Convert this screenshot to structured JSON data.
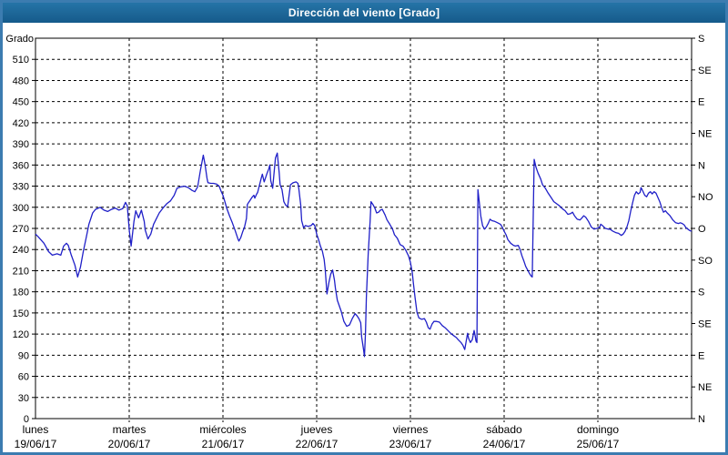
{
  "window": {
    "title": "Dirección del viento [Grado]"
  },
  "chart_data": {
    "type": "line",
    "title": "Dirección del viento [Grado]",
    "ylabel_left": "Grado",
    "y_left": {
      "min": 0,
      "max": 540,
      "tick_step": 30,
      "tick_labels_shown": [
        "0",
        "30",
        "60",
        "90",
        "120",
        "150",
        "180",
        "210",
        "240",
        "270",
        "300",
        "330",
        "360",
        "390",
        "420",
        "450",
        "480",
        "510"
      ]
    },
    "y_right": {
      "tick_step_degrees": 45,
      "labels_top_to_bottom": [
        "S",
        "SE",
        "E",
        "NE",
        "N",
        "NO",
        "O",
        "SO",
        "S",
        "SE",
        "E",
        "NE",
        "N"
      ]
    },
    "x_axis": {
      "unit": "days",
      "range_days": 7,
      "categories": [
        {
          "day": "lunes",
          "date": "19/06/17"
        },
        {
          "day": "martes",
          "date": "20/06/17"
        },
        {
          "day": "miércoles",
          "date": "21/06/17"
        },
        {
          "day": "jueves",
          "date": "22/06/17"
        },
        {
          "day": "viernes",
          "date": "23/06/17"
        },
        {
          "day": "sábado",
          "date": "24/06/17"
        },
        {
          "day": "domingo",
          "date": "25/06/17"
        }
      ]
    },
    "grid": "dashed",
    "legend": "none",
    "colors": {
      "line": "#2020c8",
      "titlebar": "#1d6697",
      "window_border": "#3c7cb0",
      "grid": "#000000"
    },
    "series": [
      {
        "name": "Dirección del viento",
        "unit": "Grado",
        "points": [
          [
            0.0,
            262
          ],
          [
            0.03,
            258
          ],
          [
            0.09,
            249
          ],
          [
            0.14,
            237
          ],
          [
            0.18,
            232
          ],
          [
            0.23,
            234
          ],
          [
            0.27,
            232
          ],
          [
            0.3,
            245
          ],
          [
            0.33,
            249
          ],
          [
            0.35,
            246
          ],
          [
            0.38,
            233
          ],
          [
            0.42,
            218
          ],
          [
            0.45,
            201
          ],
          [
            0.48,
            215
          ],
          [
            0.51,
            237
          ],
          [
            0.54,
            256
          ],
          [
            0.57,
            276
          ],
          [
            0.61,
            292
          ],
          [
            0.64,
            297
          ],
          [
            0.69,
            300
          ],
          [
            0.73,
            296
          ],
          [
            0.77,
            294
          ],
          [
            0.81,
            297
          ],
          [
            0.85,
            299
          ],
          [
            0.89,
            296
          ],
          [
            0.93,
            298
          ],
          [
            0.96,
            307
          ],
          [
            0.98,
            302
          ],
          [
            1.0,
            268
          ],
          [
            1.02,
            245
          ],
          [
            1.05,
            280
          ],
          [
            1.07,
            295
          ],
          [
            1.1,
            285
          ],
          [
            1.13,
            296
          ],
          [
            1.16,
            280
          ],
          [
            1.17,
            268
          ],
          [
            1.2,
            255
          ],
          [
            1.23,
            262
          ],
          [
            1.26,
            276
          ],
          [
            1.29,
            284
          ],
          [
            1.32,
            292
          ],
          [
            1.36,
            299
          ],
          [
            1.4,
            305
          ],
          [
            1.44,
            309
          ],
          [
            1.48,
            317
          ],
          [
            1.51,
            327
          ],
          [
            1.55,
            329
          ],
          [
            1.59,
            330
          ],
          [
            1.63,
            328
          ],
          [
            1.67,
            324
          ],
          [
            1.7,
            322
          ],
          [
            1.73,
            329
          ],
          [
            1.76,
            353
          ],
          [
            1.79,
            374
          ],
          [
            1.81,
            360
          ],
          [
            1.83,
            341
          ],
          [
            1.84,
            335
          ],
          [
            1.87,
            334
          ],
          [
            1.9,
            334
          ],
          [
            1.93,
            333
          ],
          [
            1.96,
            330
          ],
          [
            1.98,
            323
          ],
          [
            2.0,
            317
          ],
          [
            2.02,
            308
          ],
          [
            2.04,
            299
          ],
          [
            2.07,
            288
          ],
          [
            2.1,
            278
          ],
          [
            2.13,
            267
          ],
          [
            2.16,
            255
          ],
          [
            2.17,
            252
          ],
          [
            2.19,
            257
          ],
          [
            2.21,
            265
          ],
          [
            2.23,
            272
          ],
          [
            2.25,
            284
          ],
          [
            2.26,
            304
          ],
          [
            2.28,
            308
          ],
          [
            2.29,
            310
          ],
          [
            2.31,
            314
          ],
          [
            2.33,
            317
          ],
          [
            2.34,
            313
          ],
          [
            2.36,
            319
          ],
          [
            2.37,
            321
          ],
          [
            2.41,
            342
          ],
          [
            2.42,
            347
          ],
          [
            2.44,
            336
          ],
          [
            2.47,
            348
          ],
          [
            2.49,
            355
          ],
          [
            2.5,
            360
          ],
          [
            2.51,
            338
          ],
          [
            2.53,
            327
          ],
          [
            2.56,
            370
          ],
          [
            2.58,
            377
          ],
          [
            2.6,
            349
          ],
          [
            2.61,
            332
          ],
          [
            2.63,
            325
          ],
          [
            2.65,
            308
          ],
          [
            2.67,
            303
          ],
          [
            2.69,
            301
          ],
          [
            2.72,
            332
          ],
          [
            2.75,
            335
          ],
          [
            2.78,
            336
          ],
          [
            2.8,
            334
          ],
          [
            2.81,
            326
          ],
          [
            2.83,
            303
          ],
          [
            2.84,
            281
          ],
          [
            2.86,
            271
          ],
          [
            2.88,
            274
          ],
          [
            2.91,
            273
          ],
          [
            2.94,
            274
          ],
          [
            2.96,
            277
          ],
          [
            2.98,
            274
          ],
          [
            3.0,
            262
          ],
          [
            3.02,
            254
          ],
          [
            3.04,
            245
          ],
          [
            3.06,
            238
          ],
          [
            3.08,
            226
          ],
          [
            3.09,
            213
          ],
          [
            3.11,
            177
          ],
          [
            3.13,
            193
          ],
          [
            3.15,
            205
          ],
          [
            3.17,
            211
          ],
          [
            3.19,
            196
          ],
          [
            3.2,
            185
          ],
          [
            3.22,
            168
          ],
          [
            3.26,
            153
          ],
          [
            3.29,
            138
          ],
          [
            3.32,
            131
          ],
          [
            3.35,
            133
          ],
          [
            3.38,
            142
          ],
          [
            3.41,
            149
          ],
          [
            3.43,
            146
          ],
          [
            3.45,
            142
          ],
          [
            3.47,
            136
          ],
          [
            3.48,
            116
          ],
          [
            3.5,
            98
          ],
          [
            3.51,
            88
          ],
          [
            3.52,
            121
          ],
          [
            3.53,
            172
          ],
          [
            3.55,
            233
          ],
          [
            3.56,
            258
          ],
          [
            3.57,
            280
          ],
          [
            3.58,
            308
          ],
          [
            3.6,
            304
          ],
          [
            3.62,
            299
          ],
          [
            3.64,
            292
          ],
          [
            3.66,
            293
          ],
          [
            3.68,
            296
          ],
          [
            3.7,
            297
          ],
          [
            3.73,
            289
          ],
          [
            3.75,
            282
          ],
          [
            3.78,
            276
          ],
          [
            3.81,
            269
          ],
          [
            3.83,
            261
          ],
          [
            3.86,
            256
          ],
          [
            3.89,
            247
          ],
          [
            3.92,
            245
          ],
          [
            3.95,
            239
          ],
          [
            3.98,
            231
          ],
          [
            4.0,
            222
          ],
          [
            4.02,
            207
          ],
          [
            4.03,
            194
          ],
          [
            4.05,
            172
          ],
          [
            4.07,
            151
          ],
          [
            4.09,
            143
          ],
          [
            4.12,
            141
          ],
          [
            4.15,
            142
          ],
          [
            4.17,
            137
          ],
          [
            4.19,
            129
          ],
          [
            4.21,
            127
          ],
          [
            4.23,
            134
          ],
          [
            4.25,
            138
          ],
          [
            4.28,
            138
          ],
          [
            4.31,
            137
          ],
          [
            4.34,
            132
          ],
          [
            4.37,
            129
          ],
          [
            4.4,
            125
          ],
          [
            4.43,
            121
          ],
          [
            4.46,
            118
          ],
          [
            4.49,
            115
          ],
          [
            4.51,
            112
          ],
          [
            4.54,
            108
          ],
          [
            4.56,
            104
          ],
          [
            4.58,
            98
          ],
          [
            4.59,
            106
          ],
          [
            4.61,
            121
          ],
          [
            4.62,
            114
          ],
          [
            4.64,
            108
          ],
          [
            4.66,
            112
          ],
          [
            4.68,
            125
          ],
          [
            4.69,
            118
          ],
          [
            4.7,
            110
          ],
          [
            4.71,
            108
          ],
          [
            4.72,
            325
          ],
          [
            4.74,
            301
          ],
          [
            4.75,
            288
          ],
          [
            4.77,
            274
          ],
          [
            4.79,
            269
          ],
          [
            4.81,
            272
          ],
          [
            4.83,
            277
          ],
          [
            4.85,
            283
          ],
          [
            4.87,
            281
          ],
          [
            4.9,
            280
          ],
          [
            4.93,
            278
          ],
          [
            4.96,
            276
          ],
          [
            4.98,
            272
          ],
          [
            5.0,
            266
          ],
          [
            5.02,
            261
          ],
          [
            5.04,
            254
          ],
          [
            5.07,
            249
          ],
          [
            5.1,
            246
          ],
          [
            5.12,
            245
          ],
          [
            5.15,
            246
          ],
          [
            5.17,
            240
          ],
          [
            5.19,
            231
          ],
          [
            5.21,
            224
          ],
          [
            5.23,
            216
          ],
          [
            5.25,
            211
          ],
          [
            5.27,
            206
          ],
          [
            5.29,
            202
          ],
          [
            5.3,
            201
          ],
          [
            5.32,
            368
          ],
          [
            5.34,
            357
          ],
          [
            5.36,
            349
          ],
          [
            5.39,
            340
          ],
          [
            5.41,
            332
          ],
          [
            5.44,
            327
          ],
          [
            5.47,
            320
          ],
          [
            5.5,
            314
          ],
          [
            5.53,
            308
          ],
          [
            5.56,
            305
          ],
          [
            5.59,
            302
          ],
          [
            5.62,
            298
          ],
          [
            5.65,
            295
          ],
          [
            5.68,
            290
          ],
          [
            5.71,
            291
          ],
          [
            5.73,
            293
          ],
          [
            5.75,
            288
          ],
          [
            5.78,
            283
          ],
          [
            5.81,
            282
          ],
          [
            5.83,
            285
          ],
          [
            5.85,
            288
          ],
          [
            5.87,
            286
          ],
          [
            5.9,
            280
          ],
          [
            5.93,
            272
          ],
          [
            5.96,
            269
          ],
          [
            5.99,
            270
          ],
          [
            6.02,
            272
          ],
          [
            6.03,
            276
          ],
          [
            6.05,
            274
          ],
          [
            6.08,
            270
          ],
          [
            6.11,
            269
          ],
          [
            6.13,
            269
          ],
          [
            6.16,
            266
          ],
          [
            6.19,
            264
          ],
          [
            6.22,
            263
          ],
          [
            6.25,
            260
          ],
          [
            6.27,
            262
          ],
          [
            6.29,
            266
          ],
          [
            6.31,
            272
          ],
          [
            6.33,
            281
          ],
          [
            6.35,
            294
          ],
          [
            6.37,
            306
          ],
          [
            6.39,
            317
          ],
          [
            6.41,
            322
          ],
          [
            6.43,
            319
          ],
          [
            6.45,
            321
          ],
          [
            6.46,
            328
          ],
          [
            6.48,
            323
          ],
          [
            6.5,
            317
          ],
          [
            6.52,
            315
          ],
          [
            6.54,
            320
          ],
          [
            6.56,
            322
          ],
          [
            6.58,
            319
          ],
          [
            6.6,
            322
          ],
          [
            6.62,
            320
          ],
          [
            6.64,
            314
          ],
          [
            6.66,
            308
          ],
          [
            6.68,
            300
          ],
          [
            6.7,
            293
          ],
          [
            6.72,
            295
          ],
          [
            6.74,
            292
          ],
          [
            6.77,
            288
          ],
          [
            6.8,
            282
          ],
          [
            6.83,
            278
          ],
          [
            6.86,
            277
          ],
          [
            6.88,
            278
          ],
          [
            6.9,
            277
          ],
          [
            6.92,
            275
          ],
          [
            6.94,
            271
          ],
          [
            6.96,
            269
          ],
          [
            6.98,
            267
          ],
          [
            7.0,
            266
          ]
        ]
      }
    ]
  }
}
